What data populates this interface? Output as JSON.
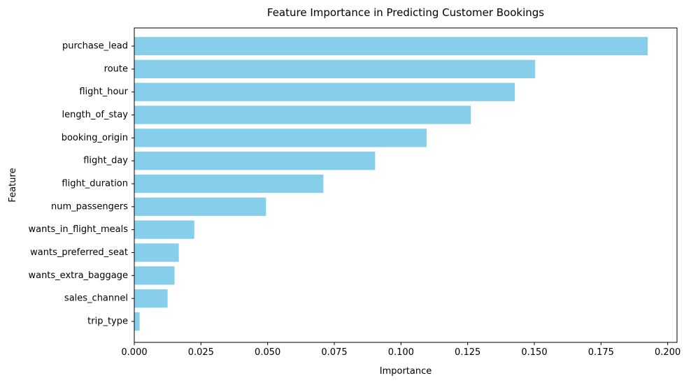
{
  "chart_data": {
    "type": "bar",
    "orientation": "horizontal",
    "title": "Feature Importance in Predicting Customer Bookings",
    "xlabel": "Importance",
    "ylabel": "Feature",
    "xlim": [
      0,
      0.2035
    ],
    "xticks": [
      "0.000",
      "0.025",
      "0.050",
      "0.075",
      "0.100",
      "0.125",
      "0.150",
      "0.175",
      "0.200"
    ],
    "grid": false,
    "legend": "none",
    "bar_color": "#87CEEB",
    "categories": [
      "purchase_lead",
      "route",
      "flight_hour",
      "length_of_stay",
      "booking_origin",
      "flight_day",
      "flight_duration",
      "num_passengers",
      "wants_in_flight_meals",
      "wants_preferred_seat",
      "wants_extra_baggage",
      "sales_channel",
      "trip_type"
    ],
    "values": [
      0.1925,
      0.1503,
      0.1427,
      0.1262,
      0.1096,
      0.0903,
      0.0709,
      0.0494,
      0.0225,
      0.0167,
      0.0151,
      0.0125,
      0.002
    ]
  }
}
